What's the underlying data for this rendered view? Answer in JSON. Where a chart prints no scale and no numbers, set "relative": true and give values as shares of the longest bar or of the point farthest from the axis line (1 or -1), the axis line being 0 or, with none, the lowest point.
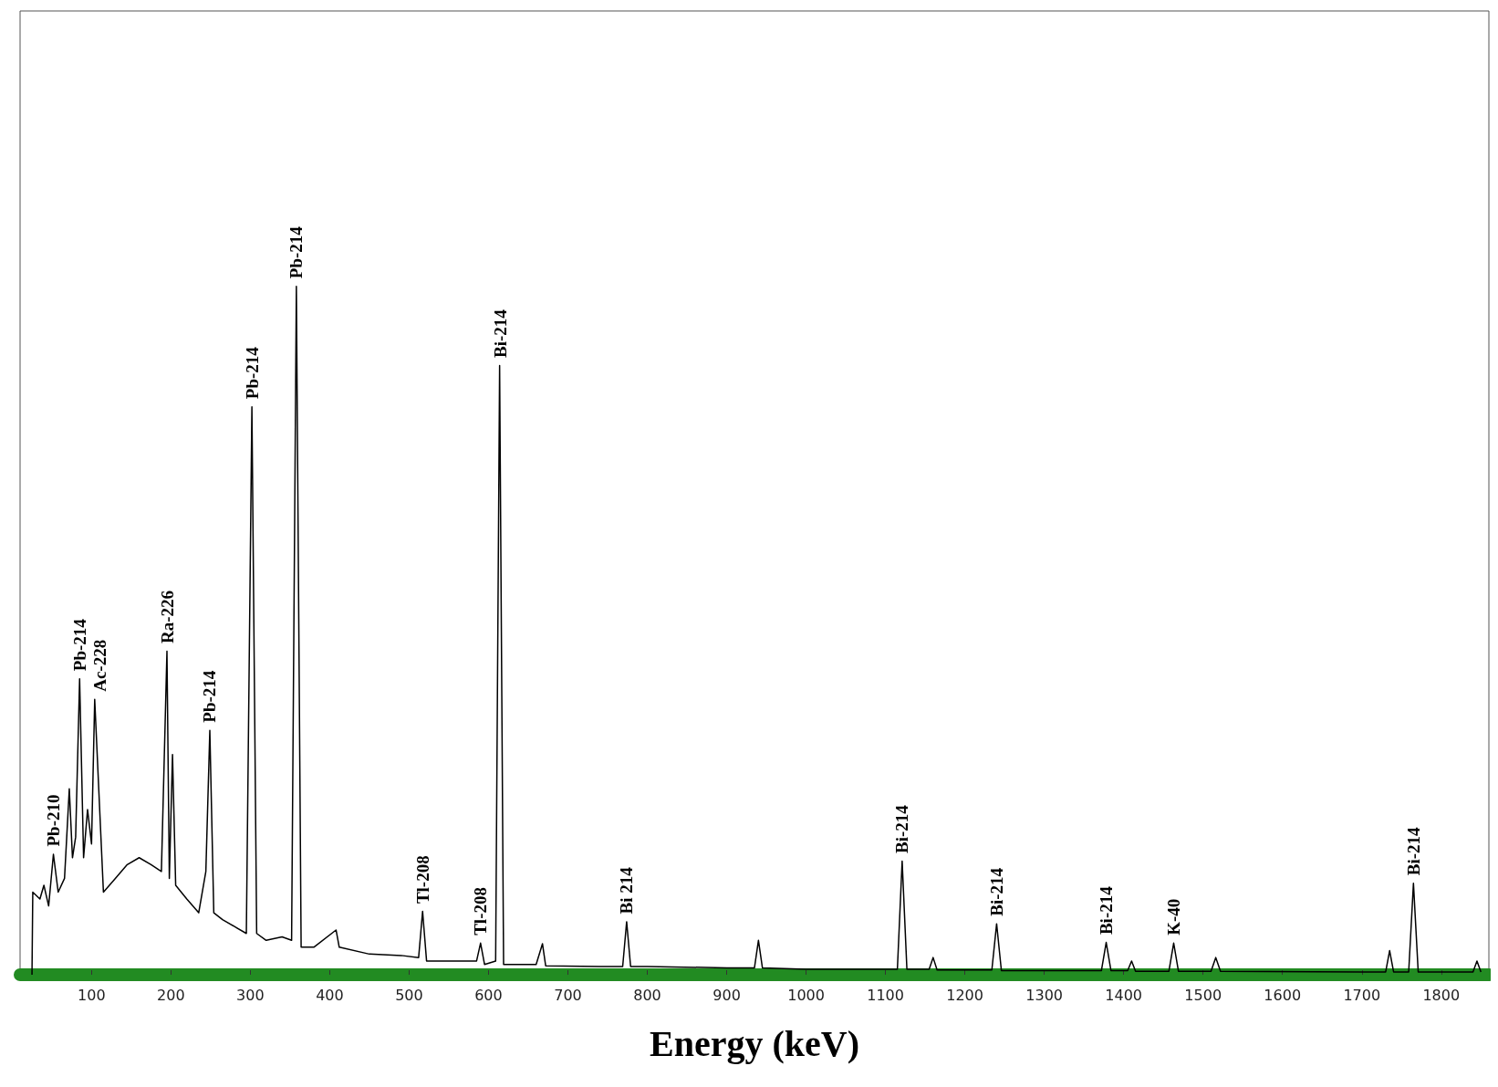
{
  "chart_data": {
    "type": "line",
    "relative": true,
    "xlabel": "Energy (keV)",
    "color": "#000000",
    "grid": false,
    "marker": "none",
    "line_style": "solid",
    "xlim": [
      10,
      1860
    ],
    "xticks": [
      100,
      200,
      300,
      400,
      500,
      600,
      700,
      800,
      900,
      1000,
      1100,
      1200,
      1300,
      1400,
      1500,
      1600,
      1700,
      1800
    ],
    "x": [
      25,
      26,
      35,
      40,
      46,
      52,
      58,
      66,
      72,
      76,
      80,
      85,
      90,
      95,
      100,
      104,
      115,
      130,
      145,
      160,
      175,
      188,
      195,
      198,
      202,
      206,
      220,
      235,
      244,
      249,
      254,
      265,
      280,
      295,
      302,
      308,
      320,
      340,
      352,
      358,
      364,
      380,
      408,
      412,
      450,
      490,
      512,
      517,
      522,
      550,
      585,
      590,
      595,
      609,
      614,
      619,
      660,
      668,
      672,
      740,
      769,
      774,
      779,
      800,
      900,
      935,
      940,
      945,
      1000,
      1115,
      1121,
      1127,
      1155,
      1160,
      1165,
      1234,
      1240,
      1246,
      1300,
      1372,
      1378,
      1384,
      1405,
      1410,
      1415,
      1457,
      1463,
      1469,
      1500,
      1510,
      1516,
      1522,
      1700,
      1730,
      1735,
      1740,
      1759,
      1765,
      1771,
      1840,
      1845,
      1850
    ],
    "values": [
      0,
      0.12,
      0.11,
      0.13,
      0.1,
      0.175,
      0.12,
      0.14,
      0.27,
      0.17,
      0.2,
      0.43,
      0.17,
      0.24,
      0.19,
      0.4,
      0.12,
      0.14,
      0.16,
      0.17,
      0.16,
      0.15,
      0.47,
      0.14,
      0.32,
      0.13,
      0.11,
      0.09,
      0.15,
      0.355,
      0.09,
      0.08,
      0.07,
      0.06,
      0.825,
      0.06,
      0.05,
      0.055,
      0.05,
      1.0,
      0.04,
      0.04,
      0.065,
      0.04,
      0.03,
      0.028,
      0.025,
      0.092,
      0.02,
      0.02,
      0.02,
      0.046,
      0.015,
      0.02,
      0.885,
      0.015,
      0.015,
      0.045,
      0.013,
      0.012,
      0.012,
      0.077,
      0.012,
      0.012,
      0.01,
      0.01,
      0.05,
      0.01,
      0.008,
      0.008,
      0.165,
      0.008,
      0.008,
      0.025,
      0.007,
      0.007,
      0.074,
      0.006,
      0.006,
      0.006,
      0.047,
      0.006,
      0.006,
      0.02,
      0.005,
      0.005,
      0.046,
      0.005,
      0.005,
      0.005,
      0.025,
      0.005,
      0.004,
      0.004,
      0.035,
      0.004,
      0.004,
      0.133,
      0.004,
      0.004,
      0.02,
      0.004
    ],
    "annotations": [
      {
        "text": "Pb-210",
        "x": 52,
        "y": 0.175
      },
      {
        "text": "Pb-214",
        "x": 85,
        "y": 0.43
      },
      {
        "text": "Ac-228",
        "x": 100,
        "y": 0.4
      },
      {
        "text": "Ra-226",
        "x": 195,
        "y": 0.47
      },
      {
        "text": "Pb-214",
        "x": 249,
        "y": 0.355
      },
      {
        "text": "Pb-214",
        "x": 302,
        "y": 0.825
      },
      {
        "text": "Pb-214",
        "x": 358,
        "y": 1.0
      },
      {
        "text": "Tl-208",
        "x": 517,
        "y": 0.092
      },
      {
        "text": "Tl-208",
        "x": 590,
        "y": 0.046
      },
      {
        "text": "Bi-214",
        "x": 614,
        "y": 0.885
      },
      {
        "text": "Bi 214",
        "x": 774,
        "y": 0.077
      },
      {
        "text": "Bi-214",
        "x": 1121,
        "y": 0.165
      },
      {
        "text": "Bi-214",
        "x": 1240,
        "y": 0.074
      },
      {
        "text": "Bi-214",
        "x": 1378,
        "y": 0.047
      },
      {
        "text": "K-40",
        "x": 1463,
        "y": 0.046
      },
      {
        "text": "Bi-214",
        "x": 1765,
        "y": 0.133
      }
    ]
  }
}
